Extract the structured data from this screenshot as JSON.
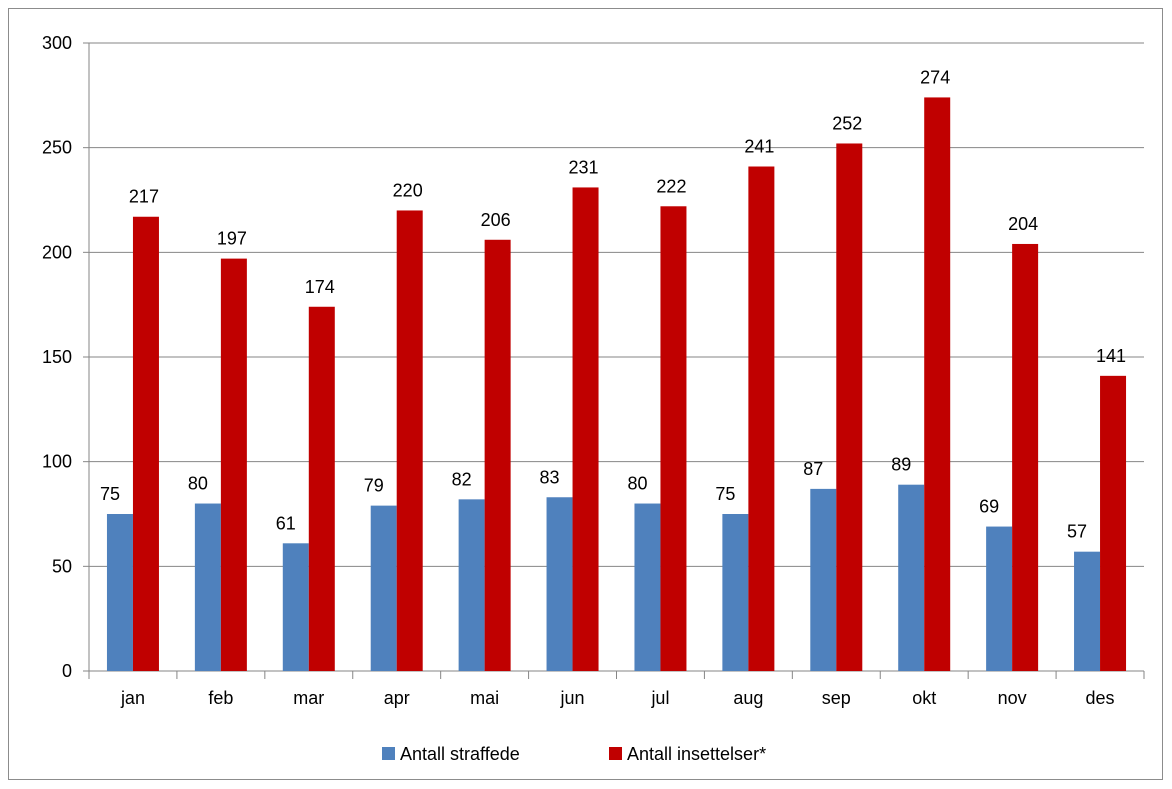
{
  "chart_data": {
    "type": "bar",
    "title": "",
    "xlabel": "",
    "ylabel": "",
    "categories": [
      "jan",
      "feb",
      "mar",
      "apr",
      "mai",
      "jun",
      "jul",
      "aug",
      "sep",
      "okt",
      "nov",
      "des"
    ],
    "series": [
      {
        "name": "Antall straffede",
        "color": "#4f81bd",
        "values": [
          75,
          80,
          61,
          79,
          82,
          83,
          80,
          75,
          87,
          89,
          69,
          57
        ]
      },
      {
        "name": "Antall insettelser*",
        "color": "#c00000",
        "values": [
          217,
          197,
          174,
          220,
          206,
          231,
          222,
          241,
          252,
          274,
          204,
          141
        ]
      }
    ],
    "ylim": [
      0,
      300
    ],
    "yticks": [
      0,
      50,
      100,
      150,
      200,
      250,
      300
    ],
    "data_labels": true,
    "grid": true,
    "legend_position": "bottom"
  }
}
